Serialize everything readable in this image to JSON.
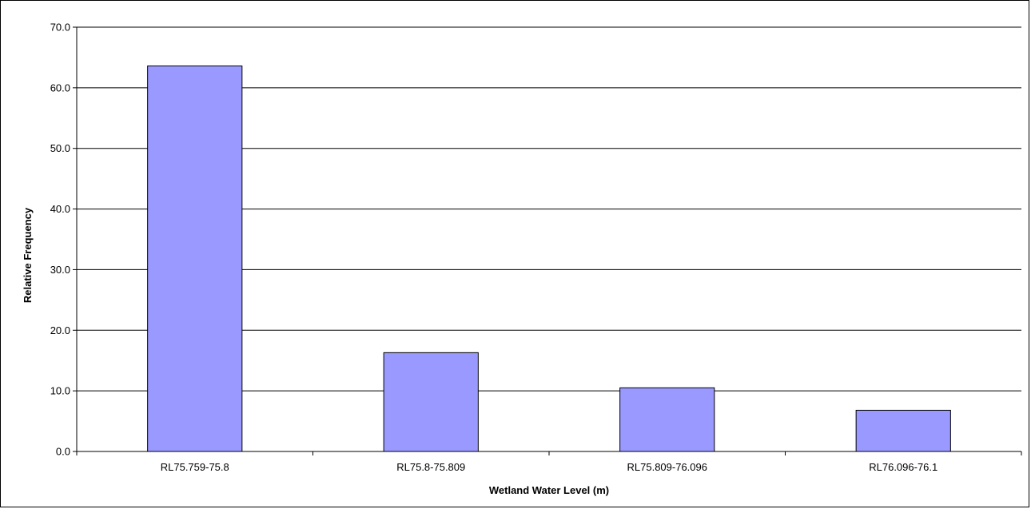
{
  "chart_data": {
    "type": "bar",
    "title": "",
    "xlabel": "Wetland Water Level (m)",
    "ylabel": "Relative Frequency",
    "categories": [
      "RL75.759-75.8",
      "RL75.8-75.809",
      "RL75.809-76.096",
      "RL76.096-76.1"
    ],
    "values": [
      63.6,
      16.3,
      10.5,
      6.8
    ],
    "ylim": [
      0,
      70
    ],
    "yticks": [
      0,
      10,
      20,
      30,
      40,
      50,
      60,
      70
    ],
    "ytick_labels": [
      "0.0",
      "10.0",
      "20.0",
      "30.0",
      "40.0",
      "50.0",
      "60.0",
      "70.0"
    ],
    "grid": true,
    "legend": "none",
    "colors": {
      "bar_fill": "#9999ff",
      "bar_stroke": "#000000",
      "grid": "#000000"
    }
  }
}
